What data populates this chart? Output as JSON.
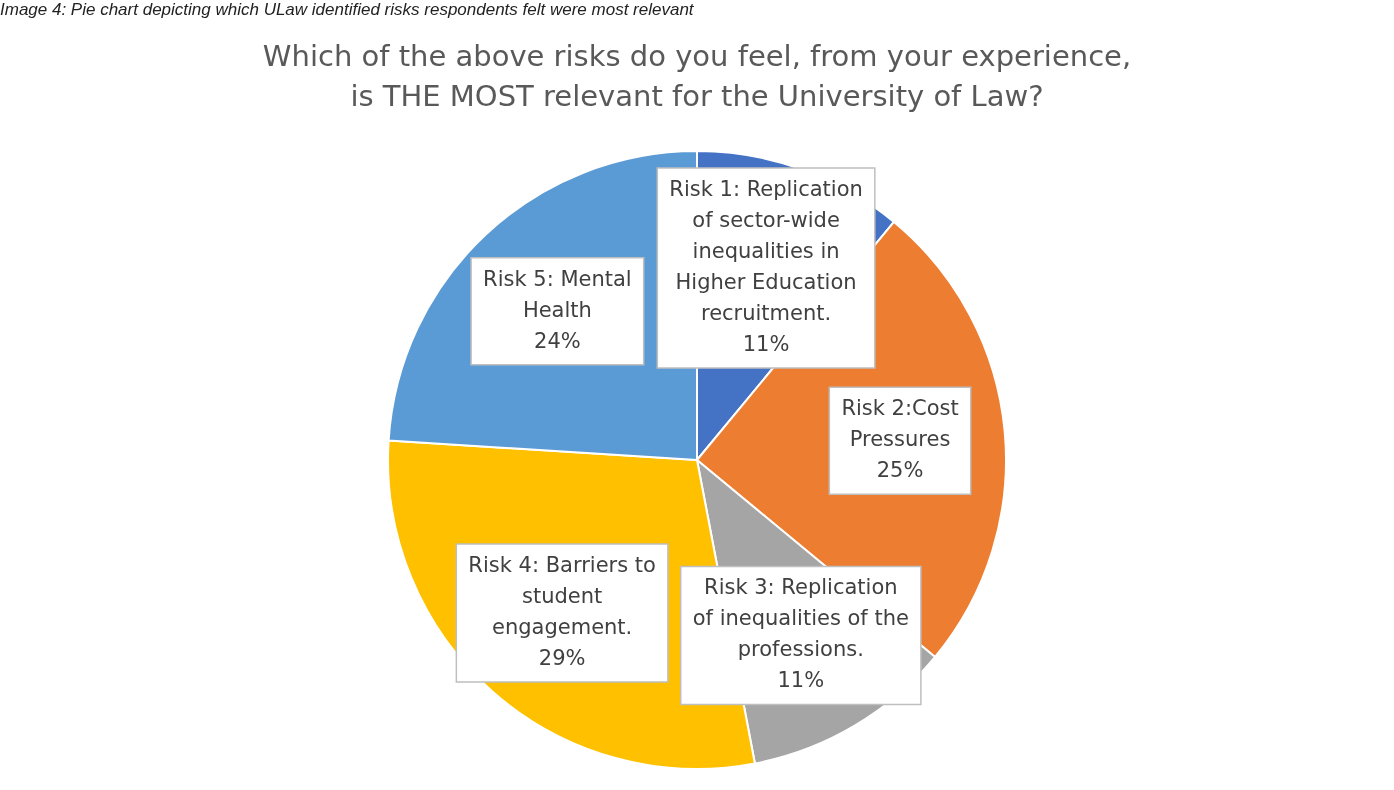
{
  "chart_data": {
    "type": "pie",
    "title": "Which of the above risks do you feel, from your experience, is THE MOST relevant for the University of Law?",
    "annotations": [
      "Image 4: Pie chart depicting which ULaw identified risks respondents felt were most relevant"
    ],
    "categories": [
      "Risk 1: Replication of sector-wide inequalities in Higher Education recruitment.",
      "Risk 2:Cost Pressures",
      "Risk 3: Replication of inequalities of the professions.",
      "Risk 4: Barriers to student engagement.",
      "Risk 5: Mental Health"
    ],
    "values": [
      11,
      25,
      11,
      29,
      24
    ],
    "value_labels": [
      "11%",
      "25%",
      "11%",
      "29%",
      "24%"
    ],
    "colors": [
      "#4472c4",
      "#ed7d31",
      "#a5a5a5",
      "#ffc000",
      "#5b9bd5"
    ],
    "legend": false
  }
}
